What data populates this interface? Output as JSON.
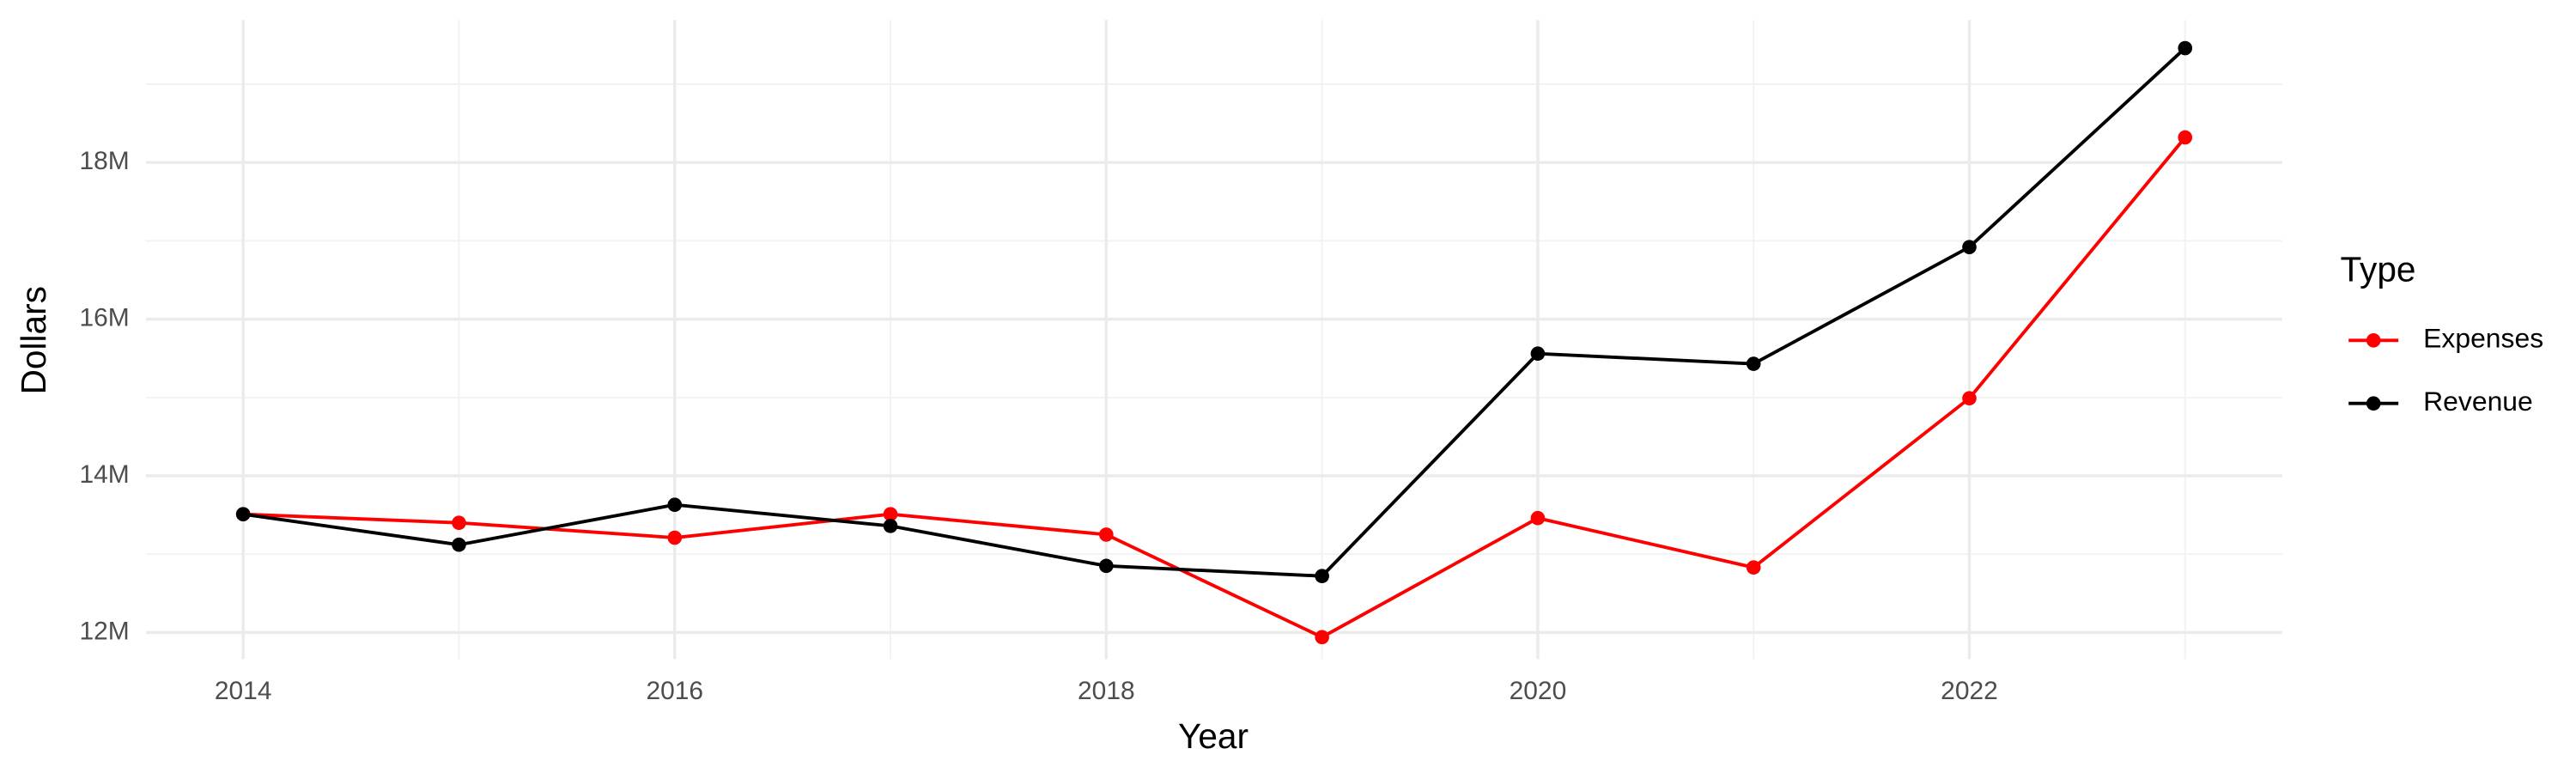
{
  "chart_data": {
    "type": "line",
    "x_label": "Year",
    "y_label": "Dollars",
    "legend_title": "Type",
    "legend_position": "right",
    "grid": true,
    "x": [
      2014,
      2015,
      2016,
      2017,
      2018,
      2019,
      2020,
      2021,
      2022,
      2023
    ],
    "series": [
      {
        "name": "Expenses",
        "color": "#ff0000",
        "values": [
          13510000,
          13400000,
          13210000,
          13510000,
          13250000,
          11940000,
          13460000,
          12830000,
          14990000,
          18320000
        ]
      },
      {
        "name": "Revenue",
        "color": "#000000",
        "values": [
          13510000,
          13120000,
          13630000,
          13360000,
          12850000,
          12720000,
          15560000,
          15430000,
          16920000,
          19460000
        ]
      }
    ],
    "xlim": [
      2013.55,
      2023.45
    ],
    "xticks": [
      2014,
      2016,
      2018,
      2020,
      2022
    ],
    "ylim": [
      11660000,
      19820000
    ],
    "yticks": [
      {
        "value": 12000000,
        "label": "12M"
      },
      {
        "value": 14000000,
        "label": "14M"
      },
      {
        "value": 16000000,
        "label": "16M"
      },
      {
        "value": 18000000,
        "label": "18M"
      }
    ]
  }
}
